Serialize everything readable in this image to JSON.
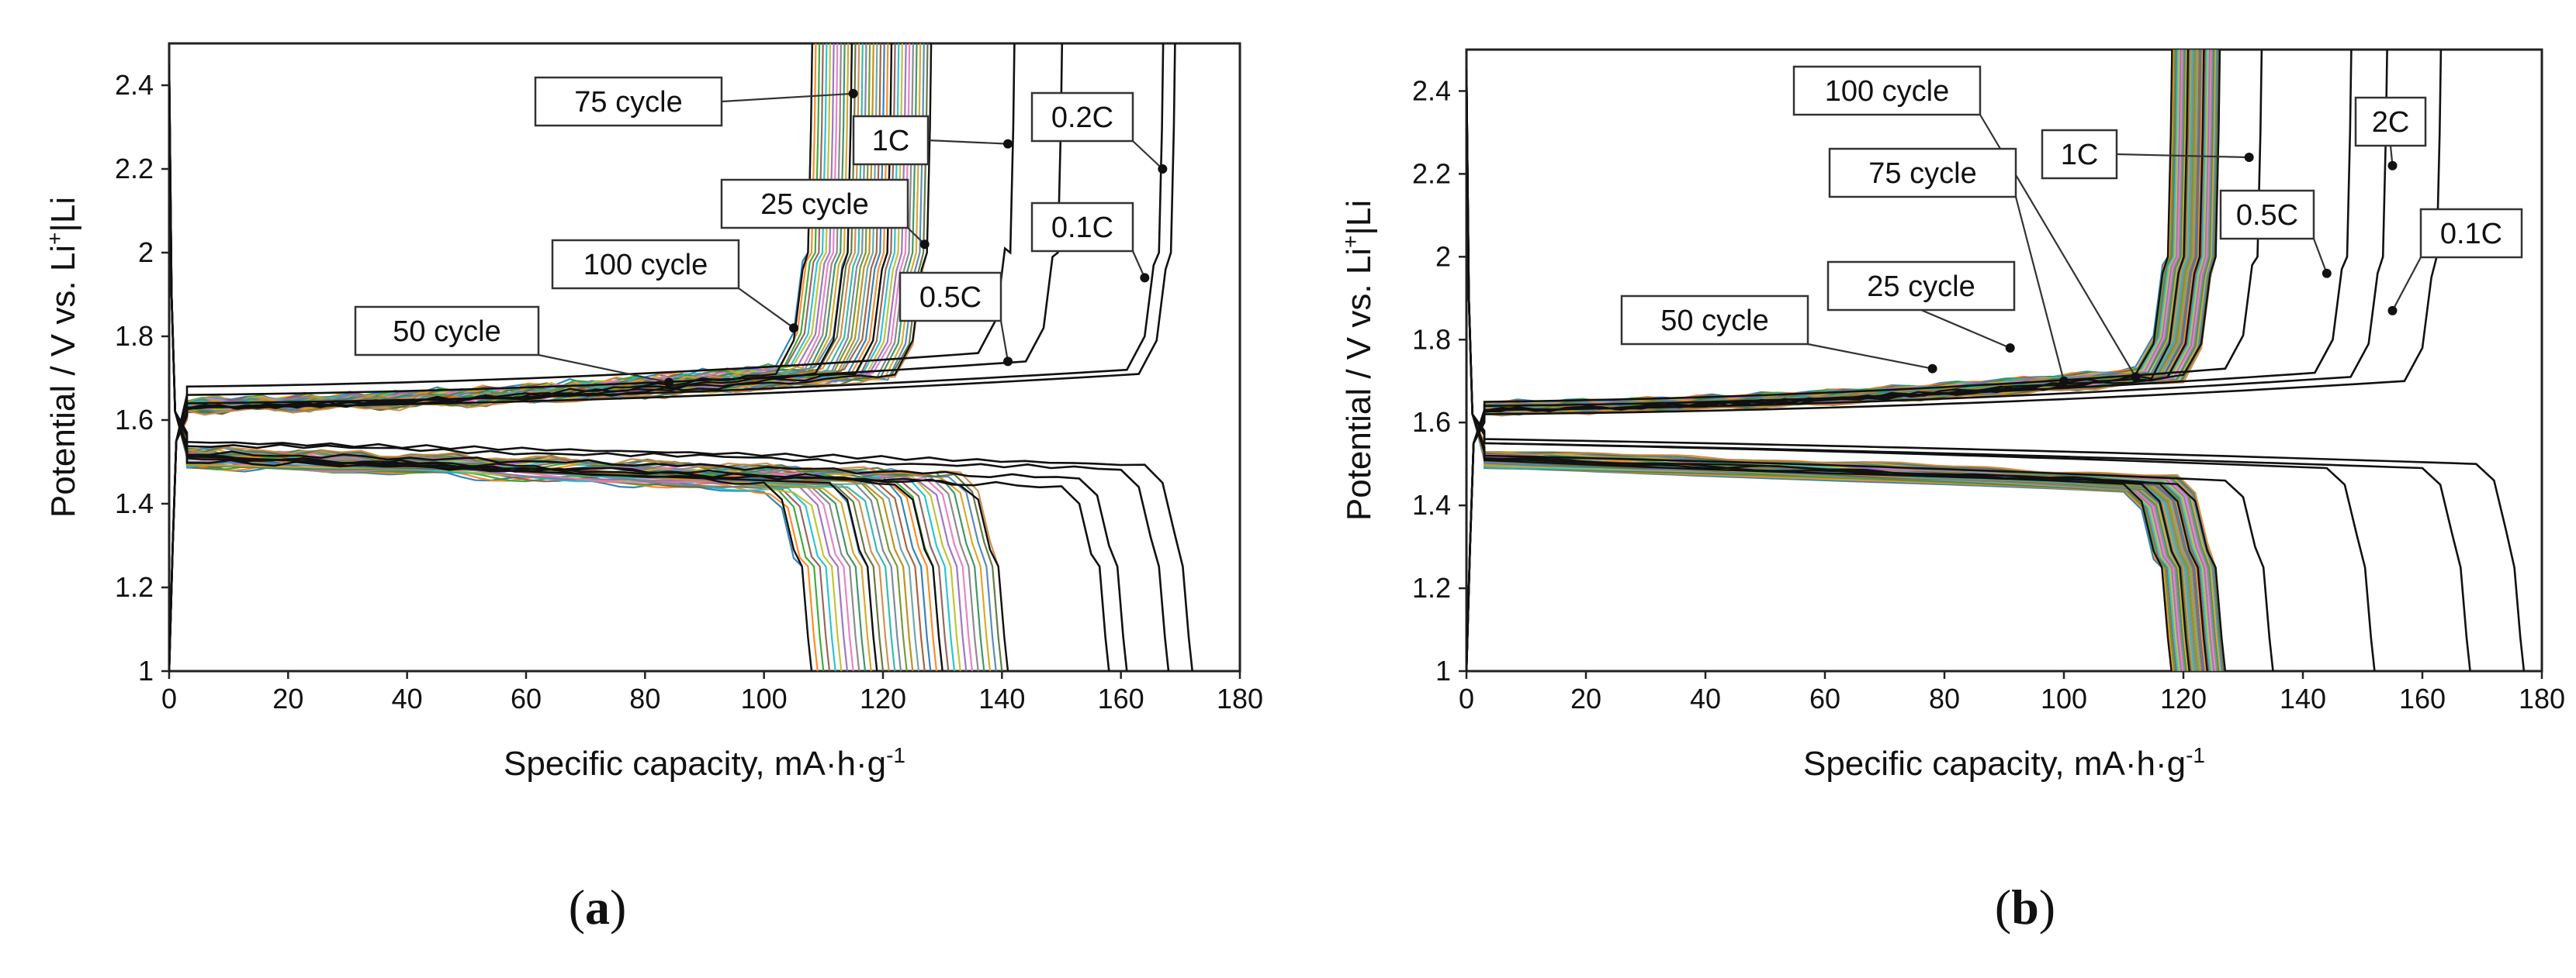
{
  "chart_data": [
    {
      "type": "line",
      "panel_label": "a",
      "xlabel": "Specific capacity, mA·h·g",
      "xlabel_sup": "-1",
      "ylabel_pre": "Potential / V vs. Li",
      "ylabel_sup": "+",
      "ylabel_post": "|Li",
      "xlim": [
        0,
        180
      ],
      "ylim": [
        1,
        2.5
      ],
      "xticks": [
        "0",
        "20",
        "40",
        "60",
        "80",
        "100",
        "120",
        "140",
        "160",
        "180"
      ],
      "yticks": [
        "1",
        "1.2",
        "1.4",
        "1.6",
        "1.8",
        "2",
        "2.2",
        "2.4"
      ],
      "grid": false,
      "rate_curves": [
        {
          "rate": "0.1C",
          "charge_end": 169,
          "discharge_end": 172,
          "plateau_charge": 1.63,
          "plateau_discharge": 1.55
        },
        {
          "rate": "0.2C",
          "charge_end": 167,
          "discharge_end": 168,
          "plateau_charge": 1.64,
          "plateau_discharge": 1.54
        },
        {
          "rate": "0.5C",
          "charge_end": 150,
          "discharge_end": 161,
          "plateau_charge": 1.66,
          "plateau_discharge": 1.52
        },
        {
          "rate": "1C",
          "charge_end": 142,
          "discharge_end": 158,
          "plateau_charge": 1.68,
          "plateau_discharge": 1.5
        }
      ],
      "cycle_band": {
        "charge_end_min": 108,
        "charge_end_max": 128,
        "discharge_end_min": 108,
        "discharge_end_max": 141
      },
      "annotations": [
        {
          "label": "75 cycle",
          "point": [
            115,
            2.38
          ]
        },
        {
          "label": "1C",
          "point": [
            141,
            2.26
          ]
        },
        {
          "label": "0.2C",
          "point": [
            167,
            2.2
          ]
        },
        {
          "label": "25 cycle",
          "point": [
            127,
            2.02
          ]
        },
        {
          "label": "0.1C",
          "point": [
            164,
            1.94
          ]
        },
        {
          "label": "100 cycle",
          "point": [
            105,
            1.82
          ]
        },
        {
          "label": "0.5C",
          "point": [
            141,
            1.74
          ]
        },
        {
          "label": "50 cycle",
          "point": [
            84,
            1.69
          ]
        }
      ]
    },
    {
      "type": "line",
      "panel_label": "b",
      "xlabel": "Specific capacity, mA·h·g",
      "xlabel_sup": "-1",
      "ylabel_pre": "Potential / V vs. Li",
      "ylabel_sup": "+",
      "ylabel_post": "|Li",
      "xlim": [
        0,
        180
      ],
      "ylim": [
        1,
        2.5
      ],
      "xticks": [
        "0",
        "20",
        "40",
        "60",
        "80",
        "100",
        "120",
        "140",
        "160",
        "180"
      ],
      "yticks": [
        "1",
        "1.2",
        "1.4",
        "1.6",
        "1.8",
        "2",
        "2.2",
        "2.4"
      ],
      "grid": false,
      "rate_curves": [
        {
          "rate": "0.1C",
          "charge_end": 163,
          "discharge_end": 177,
          "plateau_charge": 1.62,
          "plateau_discharge": 1.56
        },
        {
          "rate": "2C",
          "charge_end": 154,
          "discharge_end": 168,
          "plateau_charge": 1.63,
          "plateau_discharge": 1.55
        },
        {
          "rate": "0.5C",
          "charge_end": 148,
          "discharge_end": 152,
          "plateau_charge": 1.64,
          "plateau_discharge": 1.55
        },
        {
          "rate": "1C",
          "charge_end": 133,
          "discharge_end": 135,
          "plateau_charge": 1.65,
          "plateau_discharge": 1.52
        }
      ],
      "cycle_band": {
        "charge_end_min": 118,
        "charge_end_max": 126,
        "discharge_end_min": 118,
        "discharge_end_max": 127
      },
      "annotations": [
        {
          "label": "100 cycle",
          "point": [
            112,
            1.71
          ]
        },
        {
          "label": "1C",
          "point": [
            131,
            2.24
          ]
        },
        {
          "label": "2C",
          "point": [
            155,
            2.22
          ]
        },
        {
          "label": "75 cycle",
          "point": [
            100,
            1.7
          ]
        },
        {
          "label": "0.5C",
          "point": [
            144,
            1.96
          ]
        },
        {
          "label": "0.1C",
          "point": [
            155,
            1.87
          ]
        },
        {
          "label": "25 cycle",
          "point": [
            91,
            1.78
          ]
        },
        {
          "label": "50 cycle",
          "point": [
            78,
            1.73
          ]
        }
      ]
    }
  ]
}
